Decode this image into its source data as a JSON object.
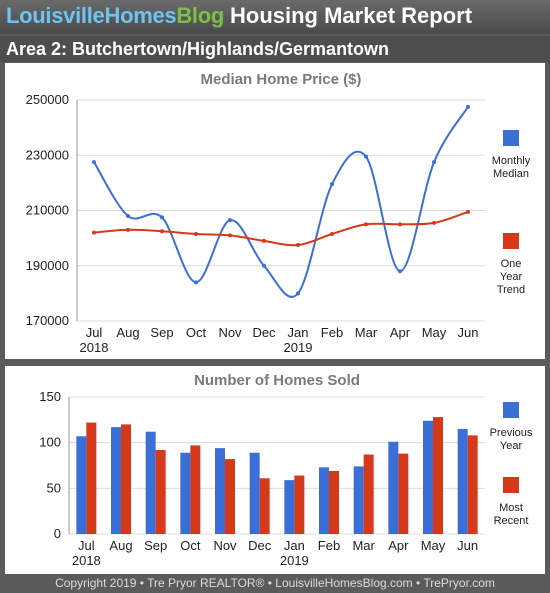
{
  "header": {
    "logo_part1": "Louisville",
    "logo_part2": "Homes",
    "logo_part3": "Blog",
    "title": "Housing Market Report",
    "area": "Area 2: Butchertown/Highlands/Germantown"
  },
  "footer": {
    "text": "Copyright 2019 • Tre Pryor REALTOR® • LouisvilleHomesBlog.com • TrePryor.com"
  },
  "colors": {
    "blue": "#3a6fd8",
    "red": "#d6391a",
    "grid": "#dcdcdc",
    "title_gray": "#7a7a7a"
  },
  "chart_data": [
    {
      "type": "line",
      "title": "Median Home Price ($)",
      "categories": [
        "Jul",
        "Aug",
        "Sep",
        "Oct",
        "Nov",
        "Dec",
        "Jan",
        "Feb",
        "Mar",
        "Apr",
        "May",
        "Jun"
      ],
      "year_labels": [
        "2018",
        "",
        "",
        "",
        "",
        "",
        "2019",
        "",
        "",
        "",
        "",
        ""
      ],
      "yticks": [
        "250000",
        "230000",
        "210000",
        "190000",
        "170000"
      ],
      "ylim": [
        170000,
        250000
      ],
      "series": [
        {
          "name": "Monthly Median",
          "legend": [
            "Monthly",
            "Median"
          ],
          "color": "#3a6fd8",
          "values": [
            227500,
            208000,
            207500,
            184000,
            206500,
            190000,
            180000,
            219500,
            229500,
            188000,
            227500,
            247500
          ]
        },
        {
          "name": "One Year Trend",
          "legend": [
            "One",
            "Year",
            "Trend"
          ],
          "color": "#d6391a",
          "values": [
            202000,
            203000,
            202500,
            201500,
            201000,
            199000,
            197500,
            201500,
            205000,
            205000,
            205500,
            209500
          ]
        }
      ],
      "grid": true,
      "legend_position": "right"
    },
    {
      "type": "bar",
      "title": "Number of Homes Sold",
      "categories": [
        "Jul",
        "Aug",
        "Sep",
        "Oct",
        "Nov",
        "Dec",
        "Jan",
        "Feb",
        "Mar",
        "Apr",
        "May",
        "Jun"
      ],
      "year_labels": [
        "2018",
        "",
        "",
        "",
        "",
        "",
        "2019",
        "",
        "",
        "",
        "",
        ""
      ],
      "yticks": [
        "150",
        "100",
        "50",
        "0"
      ],
      "ylim": [
        0,
        150
      ],
      "series": [
        {
          "name": "Previous Year",
          "legend": [
            "Previous",
            "Year"
          ],
          "color": "#3a6fd8",
          "values": [
            107,
            117,
            112,
            89,
            94,
            89,
            59,
            73,
            74,
            101,
            124,
            115
          ]
        },
        {
          "name": "Most Recent",
          "legend": [
            "Most",
            "Recent"
          ],
          "color": "#d6391a",
          "values": [
            122,
            120,
            92,
            97,
            82,
            61,
            64,
            69,
            87,
            88,
            128,
            108
          ]
        }
      ],
      "grid": true,
      "legend_position": "right"
    }
  ]
}
